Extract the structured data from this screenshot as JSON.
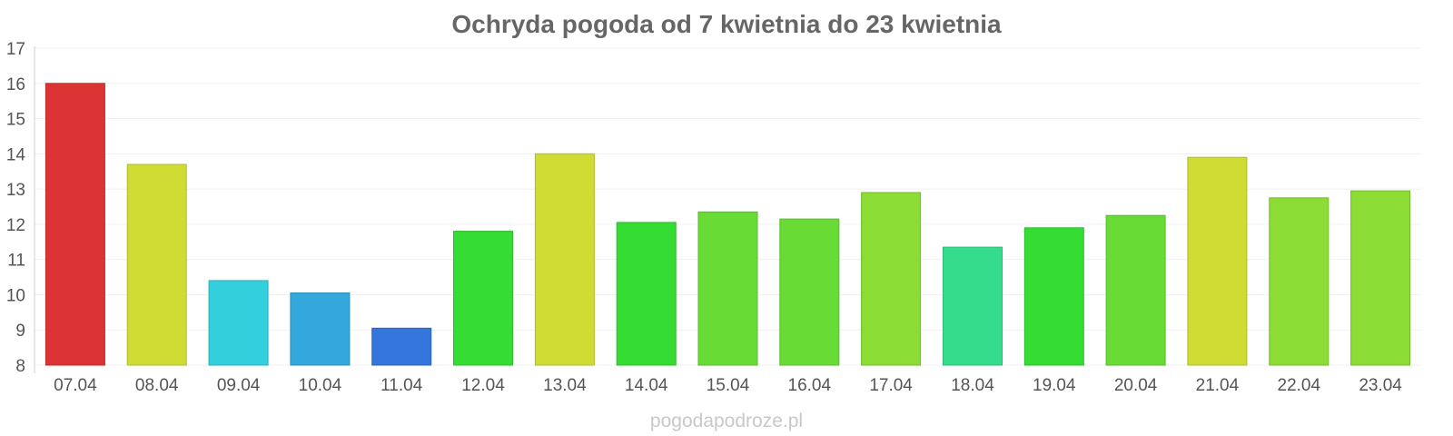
{
  "chart_data": {
    "type": "bar",
    "title": "Ochryda pogoda od 7 kwietnia do 23 kwietnia",
    "xlabel": "",
    "ylabel": "",
    "ylim": [
      8,
      17
    ],
    "yticks": [
      "8",
      "9",
      "10",
      "11",
      "12",
      "13",
      "14",
      "15",
      "16",
      "17"
    ],
    "grid": true,
    "categories": [
      "07.04",
      "08.04",
      "09.04",
      "10.04",
      "11.04",
      "12.04",
      "13.04",
      "14.04",
      "15.04",
      "16.04",
      "17.04",
      "18.04",
      "19.04",
      "20.04",
      "21.04",
      "22.04",
      "23.04"
    ],
    "values": [
      16.0,
      13.7,
      10.4,
      10.05,
      9.05,
      11.8,
      14.0,
      12.05,
      12.35,
      12.15,
      12.9,
      11.35,
      11.9,
      12.25,
      13.9,
      12.75,
      12.95
    ],
    "colors": [
      "#dc3434",
      "#cfdc34",
      "#34cfdc",
      "#34a8dc",
      "#3476dc",
      "#34dc34",
      "#cfdc34",
      "#34dc34",
      "#68dc34",
      "#68dc34",
      "#8bdc34",
      "#34dc8b",
      "#34dc34",
      "#68dc34",
      "#cfdc34",
      "#8bdc34",
      "#8bdc34"
    ]
  },
  "watermark": "pogodapodroze.pl"
}
